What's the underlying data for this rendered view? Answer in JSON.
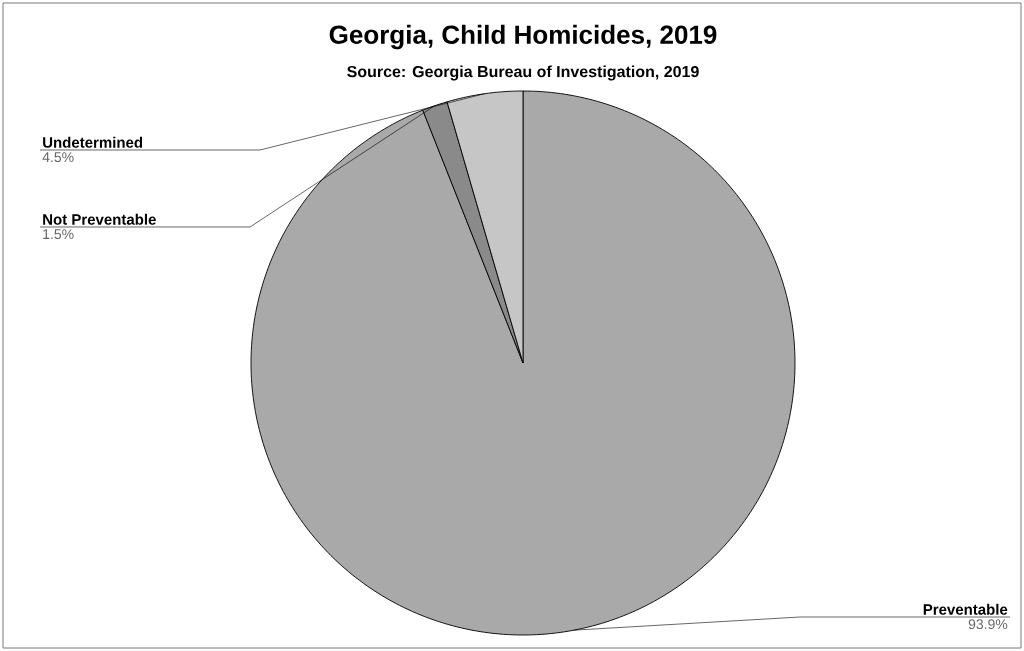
{
  "chart_data": {
    "type": "pie",
    "title": "Georgia, Child Homicides, 2019",
    "subtitle": "Source: Georgia Bureau of Investigation, 2019",
    "categories": [
      "Preventable",
      "Not Preventable",
      "Undetermined"
    ],
    "values": [
      93.9,
      1.5,
      4.5
    ],
    "colors": [
      "#a9a9a9",
      "#8a8a8a",
      "#c6c6c6"
    ],
    "value_labels": [
      "93.9%",
      "1.5%",
      "4.5%"
    ]
  }
}
